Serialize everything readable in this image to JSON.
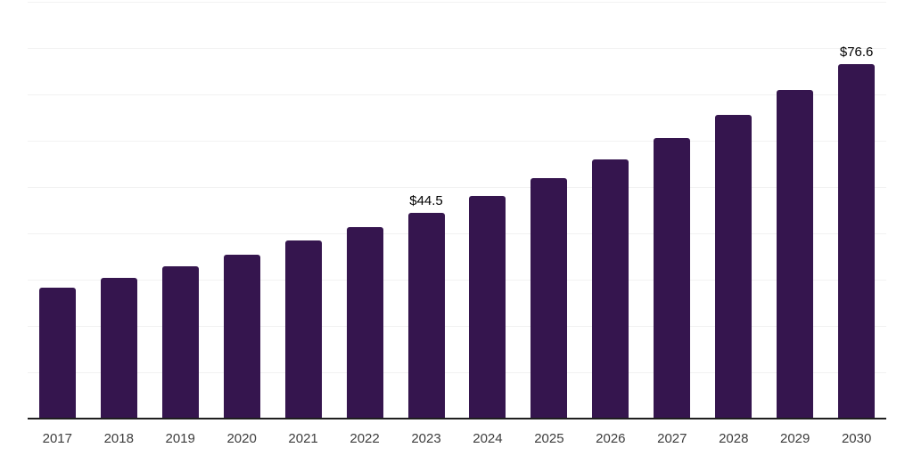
{
  "chart_data": {
    "type": "bar",
    "title": "",
    "xlabel": "",
    "ylabel": "",
    "categories": [
      "2017",
      "2018",
      "2019",
      "2020",
      "2021",
      "2022",
      "2023",
      "2024",
      "2025",
      "2026",
      "2027",
      "2028",
      "2029",
      "2030"
    ],
    "values": [
      28.3,
      30.4,
      32.8,
      35.4,
      38.4,
      41.3,
      44.5,
      48.0,
      51.9,
      56.0,
      60.6,
      65.6,
      70.9,
      76.6
    ],
    "data_labels": [
      {
        "category": "2023",
        "text": "$44.5"
      },
      {
        "category": "2030",
        "text": "$76.6"
      }
    ],
    "ylim": [
      0,
      90
    ],
    "gridline_interval": 10,
    "grid": true,
    "legend_position": "none",
    "y_axis_tick_labels_visible": false,
    "colors": {
      "bar": "#35154E",
      "gridline": "#F2F2F2",
      "axis_line": "#1F1F1F",
      "tick_label": "#3D3D3D",
      "data_label": "#000000",
      "background": "#FFFFFF"
    }
  }
}
